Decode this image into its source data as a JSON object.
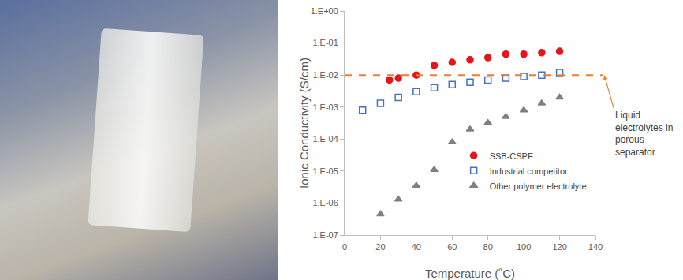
{
  "chart_data": {
    "type": "scatter",
    "x_label": "Temperature (˚C)",
    "y_label": "Ionic Conductivity (S/cm)",
    "log": "y",
    "grid": false,
    "legend": "bottom right",
    "xlim": [
      0,
      140
    ],
    "xticks": [
      0,
      20,
      40,
      60,
      80,
      100,
      120,
      140
    ],
    "ylim": [
      1e-07,
      1
    ],
    "yticks": [
      {
        "value": 1e-07,
        "label": "1.E-07"
      },
      {
        "value": 1e-06,
        "label": "1.E-06"
      },
      {
        "value": 1e-05,
        "label": "1.E-05"
      },
      {
        "value": 0.0001,
        "label": "1.E-04"
      },
      {
        "value": 0.001,
        "label": "1.E-03"
      },
      {
        "value": 0.01,
        "label": "1.E-02"
      },
      {
        "value": 0.1,
        "label": "1.E-01"
      },
      {
        "value": 1,
        "label": "1.E+00"
      }
    ],
    "series": [
      {
        "name": "SSB-CSPE",
        "color": "#e8141b",
        "marker": "circle",
        "x": [
          25,
          30,
          40,
          50,
          60,
          70,
          80,
          90,
          100,
          110,
          120
        ],
        "values": [
          0.007,
          0.008,
          0.01,
          0.02,
          0.025,
          0.03,
          0.035,
          0.045,
          0.045,
          0.05,
          0.055
        ]
      },
      {
        "name": "Industrial competitor",
        "color": "#4472c4",
        "marker": "square-open",
        "x": [
          10,
          20,
          30,
          40,
          50,
          60,
          70,
          80,
          90,
          100,
          110,
          120
        ],
        "values": [
          0.0008,
          0.0013,
          0.002,
          0.003,
          0.004,
          0.005,
          0.006,
          0.007,
          0.008,
          0.009,
          0.01,
          0.012
        ]
      },
      {
        "name": "Other polymer electrolyte",
        "color": "#808080",
        "marker": "triangle-up",
        "x": [
          20,
          30,
          40,
          50,
          60,
          70,
          80,
          90,
          100,
          110,
          120
        ],
        "values": [
          4.5e-07,
          1.3e-06,
          3.5e-06,
          1.1e-05,
          8e-05,
          0.0002,
          0.00032,
          0.0005,
          0.0008,
          0.0013,
          0.002
        ]
      }
    ],
    "reference_line": {
      "y": 0.01,
      "color": "#ed7d31",
      "line_style": "dash",
      "label": [
        "Liquid",
        "electrolytes in",
        "porous",
        "separator"
      ]
    }
  }
}
